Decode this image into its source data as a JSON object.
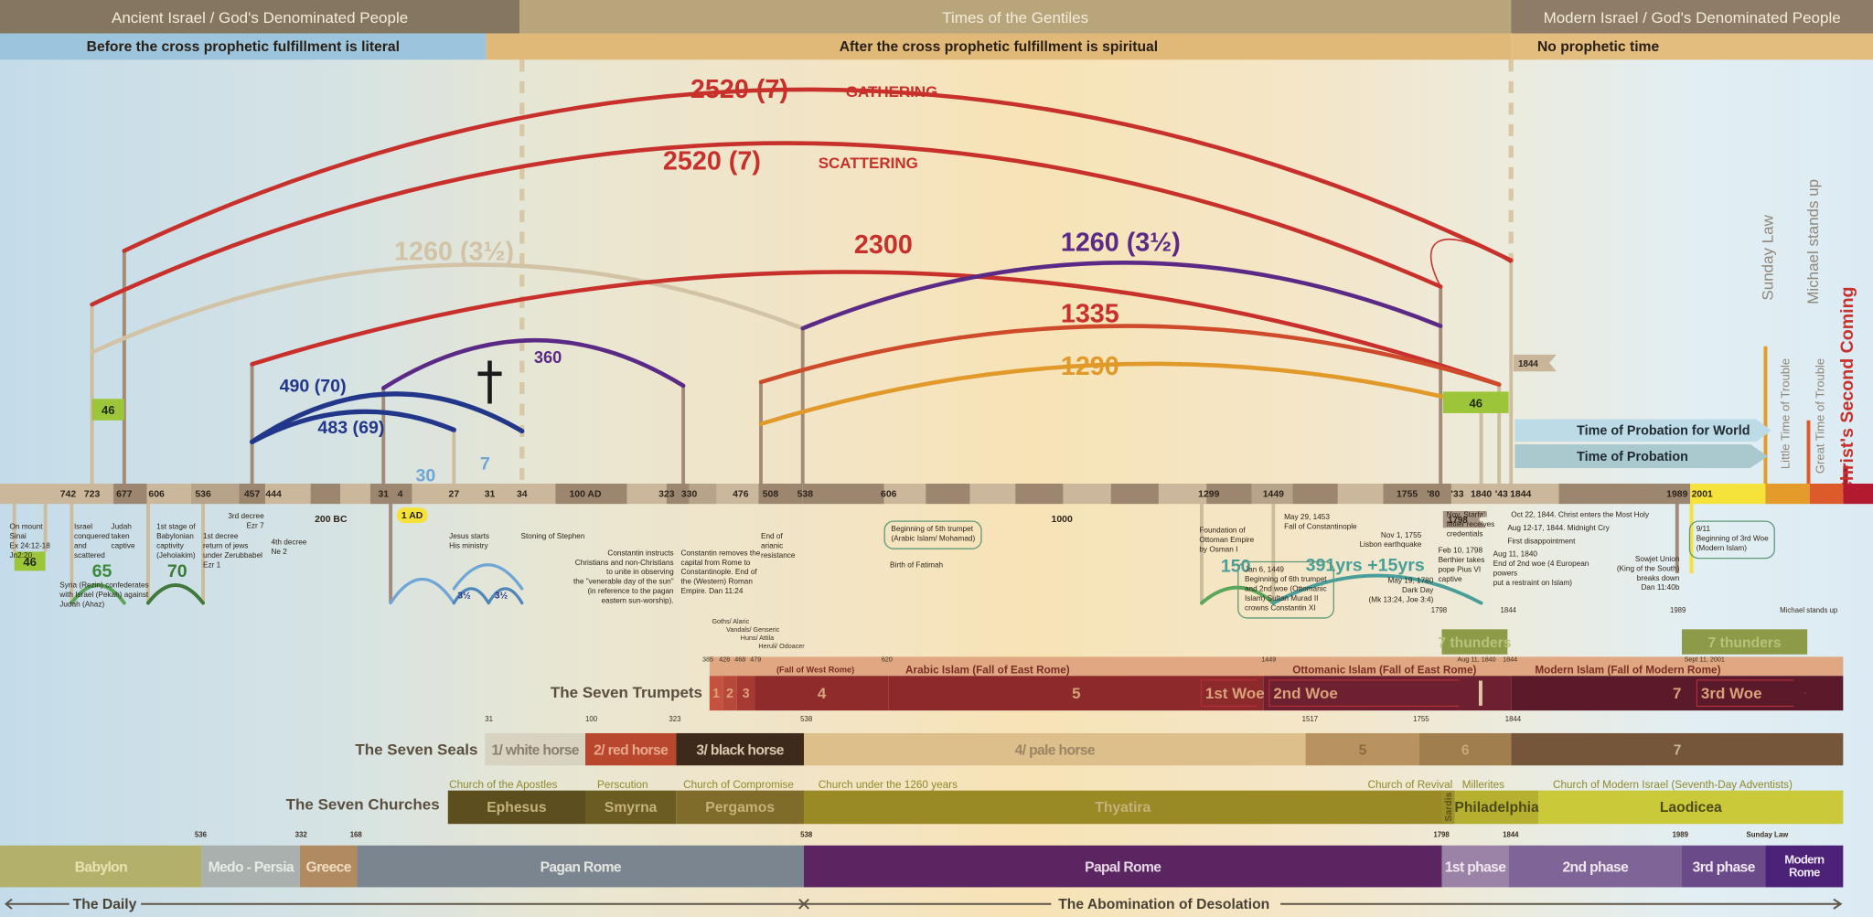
{
  "header": {
    "ancient": "Ancient Israel / God's Denominated People",
    "gentiles": "Times of the Gentiles",
    "modern": "Modern Israel / God's Denominated People",
    "before": "Before the cross prophetic fulfillment is literal",
    "after": "After the cross prophetic fulfillment is spiritual",
    "none": "No prophetic time"
  },
  "periods": [
    {
      "label": "2520 (7)",
      "suffix": "GATHERING"
    },
    {
      "label": "2520 (7)",
      "suffix": "SCATTERING"
    },
    {
      "label": "1260 (3½)"
    },
    {
      "label": "2300"
    },
    {
      "label": "1260  (3½)"
    },
    {
      "label": "1335"
    },
    {
      "label": "1290"
    },
    {
      "label": "360"
    },
    {
      "label": "490  (70)"
    },
    {
      "label": "483 (69)"
    },
    {
      "label": "30"
    },
    {
      "label": "7"
    },
    {
      "label": "3½"
    },
    {
      "label": "3½"
    },
    {
      "label": "65"
    },
    {
      "label": "70"
    },
    {
      "label": "150"
    },
    {
      "label": "391yrs +15yrs"
    }
  ],
  "cross_icon": "latin-cross",
  "badges": [
    "46",
    "46",
    "46"
  ],
  "flags": [
    "1844",
    "1798"
  ],
  "probation": {
    "world": "Time of Probation for World",
    "church": "Time of Probation"
  },
  "vertical_labels": [
    "Sunday Law",
    "Little Time of Trouble",
    "Michael stands up",
    "Great Time of Trouble",
    "Christ's Second Coming"
  ],
  "timeline_years": [
    "742",
    "723",
    "677",
    "606",
    "536",
    "457",
    "444",
    "200 BC",
    "31",
    "4",
    "1 AD",
    "27",
    "31",
    "34",
    "100 AD",
    "323",
    "330",
    "476",
    "508",
    "538",
    "606",
    "1000",
    "1299",
    "1449",
    "1755",
    "'80",
    "'33",
    "1840",
    "'43",
    "1844",
    "1989",
    "2001"
  ],
  "events": [
    "On mount\nSinai\nEx 24:12-18\nJn2:20",
    "Israel\nconquered\nand\nscattered",
    "Judah taken\ncaptive",
    "1st stage of\nBabylonian\ncaptivity\n(Jehoiakim)",
    "Syria (Rezin) confederates\nwith Israel (Pekah) against\nJudah (Ahaz)",
    "3rd decree\nEzr 7",
    "1st decree\nreturn of jews\nunder Zerubbabel\nEzr 1",
    "4th decree\nNe 2",
    "Jesus starts\nHis ministry",
    "Stoning of Stephen",
    "Constantin instructs\nChristians and non-Christians\nto unite in observing\nthe \"venerable day of the sun\"\n(in reference to the pagan\neastern sun-worship).",
    "Constantin removes the\ncapital from Rome to\nConstantinople. End of\nthe (Western) Roman\nEmpire. Dan 11:24",
    "End of\narianic\nresistance",
    "Birth of Fatimah",
    "Foundation of\nOttoman Empire\nby Osman I",
    "May 29, 1453\nFall of Constantinople",
    "Nov 1, 1755\nLisbon earthquake",
    "May 19, 1780\nDark Day\n(Mk 13:24, Joe 3:4)",
    "Nov. Starfall\nMiller receives\ncredentials",
    "Feb 10, 1798\nBerthier takes\npope Pius VI\ncaptive",
    "Oct 22, 1844. Christ enters the Most Holy",
    "Aug 12-17, 1844. Midnight Cry",
    "First disappointment",
    "Aug 11, 1840\nEnd of 2nd woe (4 European powers\nput a restraint on Islam)",
    "Sowjet Union\n(King of the South)\nbreaks down\nDan 11:40b"
  ],
  "event_boxes": [
    "Beginning of 5th trumpet\n(Arabic Islam/ Mohamad)",
    "Jan 6, 1449\nBeginning of 6th trumpet\nand 2nd woe (Ottomanic\nIslam) Sultan Murad II\ncrowns Constantin XI",
    "9/11\nBeginning of 3rd Woe\n(Modern Islam)"
  ],
  "sub_years": [
    "1798",
    "1844",
    "1989",
    "Michael stands up"
  ],
  "thunders": [
    "7 thunders",
    "7 thunders"
  ],
  "invaders": [
    "Goths/ Alaric",
    "Vandals/ Genseric",
    "Huns/ Attila",
    "Heruli/ Odoacer"
  ],
  "trumpets": {
    "title": "The Seven Trumpets",
    "years": [
      "385",
      "428",
      "468",
      "479",
      "620",
      "1449",
      "Aug 11, 1840",
      "1844",
      "Sept 11, 2001"
    ],
    "eras": [
      "(Fall of West Rome)",
      "Arabic Islam (Fall of East Rome)",
      "Ottomanic Islam (Fall of East Rome)",
      "Modern Islam (Fall of Modern Rome)"
    ],
    "segments": [
      "1",
      "2",
      "3",
      "4",
      "5",
      "7"
    ],
    "woes": [
      "1st Woe",
      "2nd Woe",
      "3rd Woe"
    ]
  },
  "seals": {
    "title": "The Seven Seals",
    "years": [
      "31",
      "100",
      "323",
      "538",
      "1517",
      "1755",
      "1844"
    ],
    "segments": [
      "1/ white horse",
      "2/ red horse",
      "3/ black horse",
      "4/ pale horse",
      "5",
      "6",
      "7"
    ]
  },
  "churches": {
    "title": "The Seven Churches",
    "captions": [
      "Church of the Apostles",
      "Perscution",
      "Church of Compromise",
      "Church under the 1260 years",
      "Church of Revival",
      "Millerites",
      "Church of Modern Israel (Seventh-Day Adventists)"
    ],
    "segments": [
      "Ephesus",
      "Smyrna",
      "Pergamos",
      "Thyatira",
      "Sardis",
      "Philadelphia",
      "Laodicea"
    ]
  },
  "kingdoms": {
    "years": [
      "536",
      "332",
      "168",
      "538",
      "1798",
      "1844",
      "1989",
      "Sunday Law"
    ],
    "segments": [
      "Babylon",
      "Medo - Persia",
      "Greece",
      "Pagan Rome",
      "Papal Rome",
      "1st phase",
      "2nd phase",
      "3rd phase",
      "Modern Rome"
    ]
  },
  "bottom": {
    "daily": "The Daily",
    "abomination": "The Abomination of Desolation"
  },
  "colors": {
    "gathering": "#c8302c",
    "beige_arc": "#d2c3a6",
    "purple": "#5b2a86",
    "navy": "#22378a",
    "light_blue": "#6fa6d6",
    "orange": "#e19a2a",
    "green": "#5aa65a",
    "teal": "#4a9e9a",
    "badge": "#9dc53a"
  }
}
